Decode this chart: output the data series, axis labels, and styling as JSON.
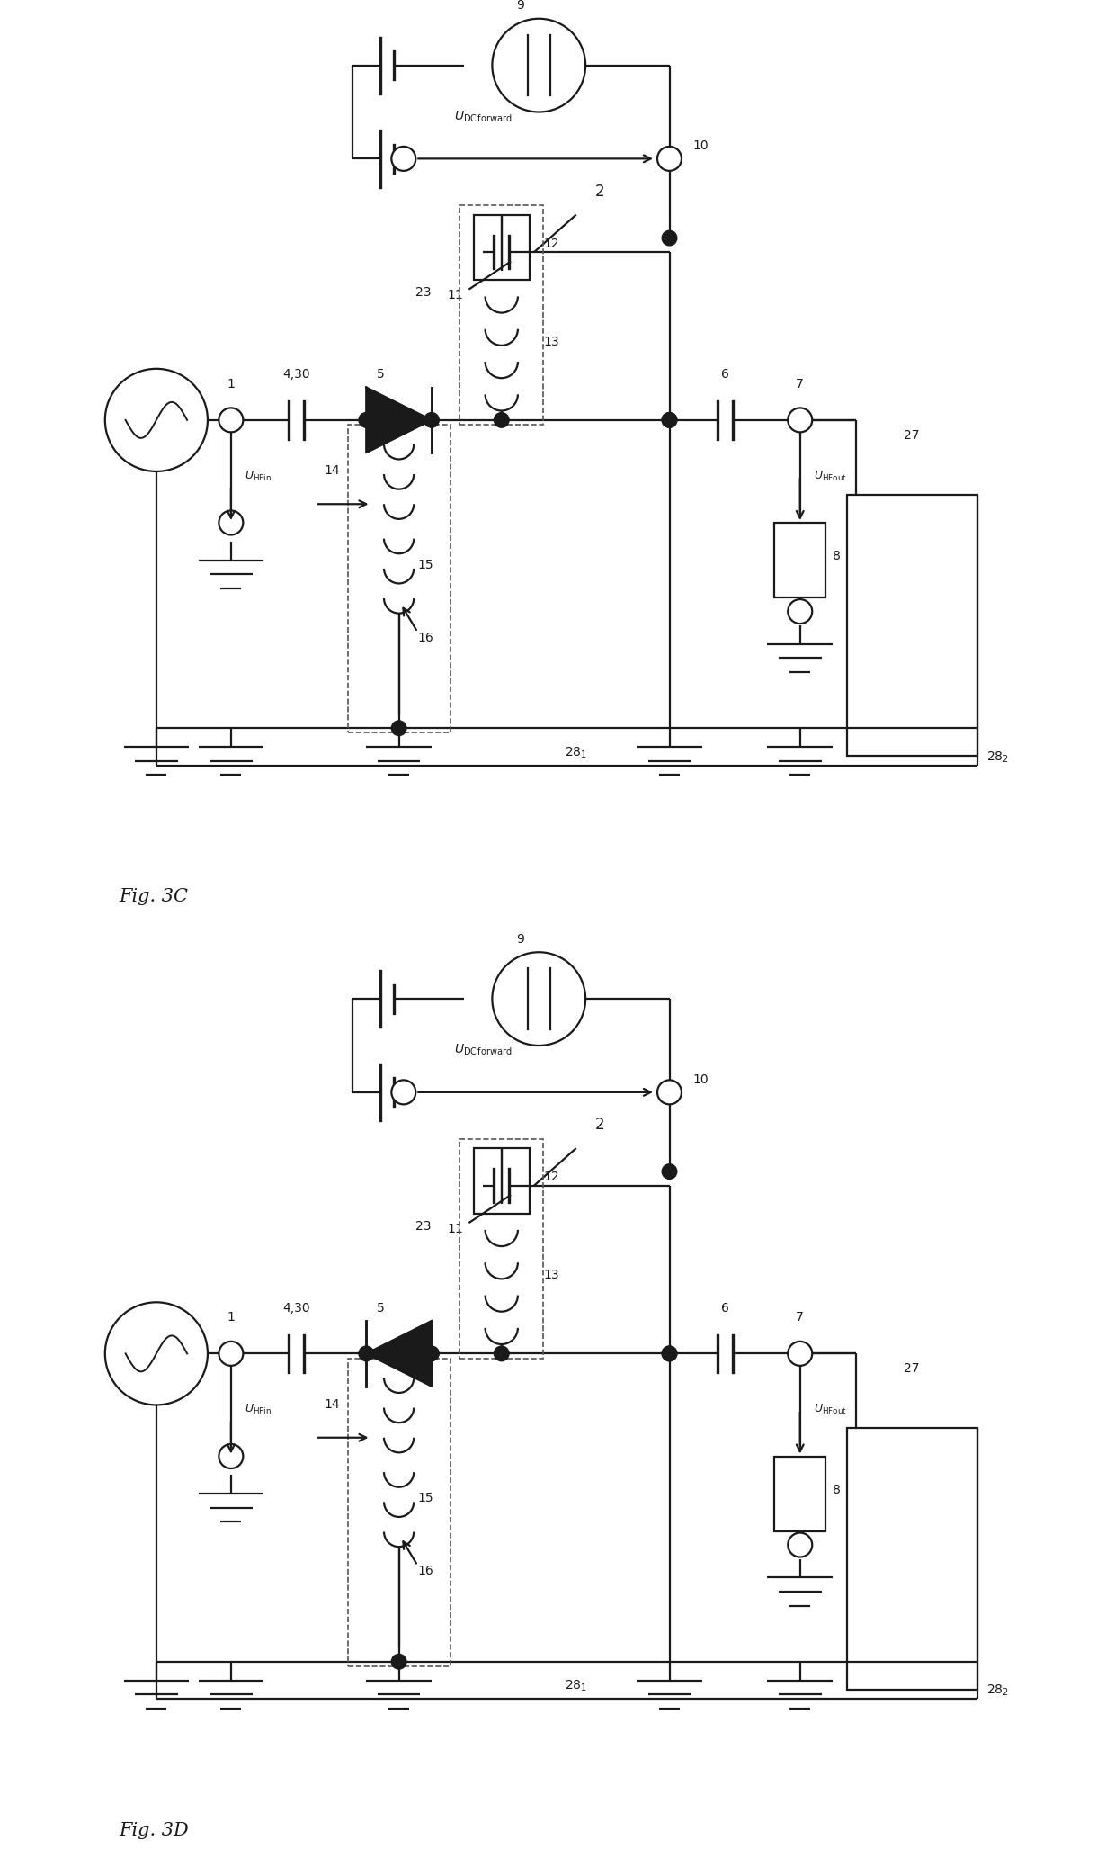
{
  "bg_color": "#ffffff",
  "lc": "#1a1a1a",
  "lw": 1.6,
  "fig_width": 12.4,
  "fig_height": 20.75,
  "fig3c_label": "Fig. 3C",
  "fig3d_label": "Fig. 3D"
}
